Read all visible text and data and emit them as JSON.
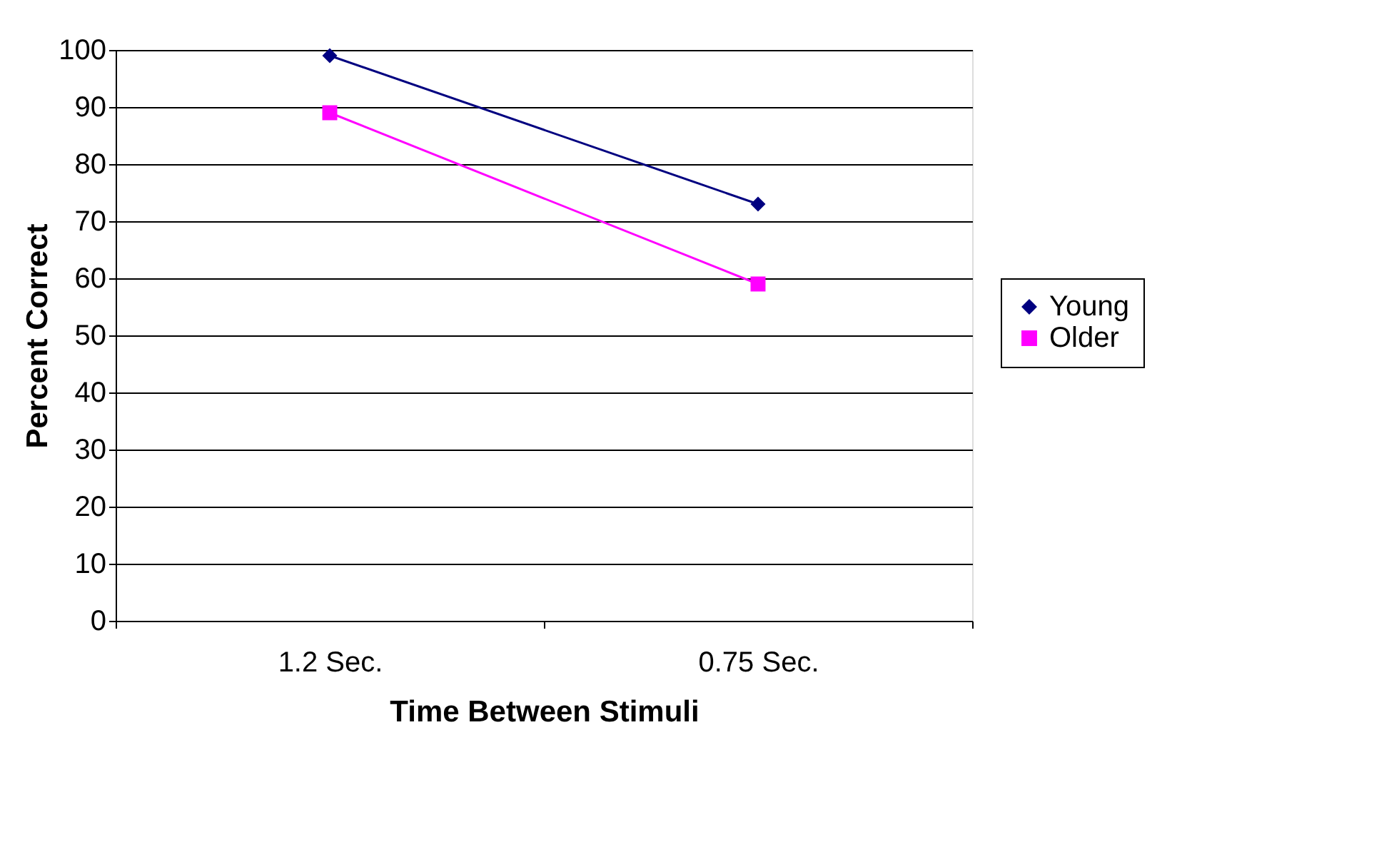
{
  "chart_data": {
    "type": "line",
    "xlabel": "Time Between Stimuli",
    "ylabel": "Percent Correct",
    "categories": [
      "1.2 Sec.",
      "0.75 Sec."
    ],
    "series": [
      {
        "name": "Young",
        "color": "#000080",
        "marker": "diamond",
        "values": [
          99,
          73
        ]
      },
      {
        "name": "Older",
        "color": "#ff00ff",
        "marker": "square",
        "values": [
          89,
          59
        ]
      }
    ],
    "ylim": [
      0,
      100
    ],
    "yticks": [
      0,
      10,
      20,
      30,
      40,
      50,
      60,
      70,
      80,
      90,
      100
    ],
    "grid": "y",
    "legend": "right",
    "line_style": "solid"
  }
}
